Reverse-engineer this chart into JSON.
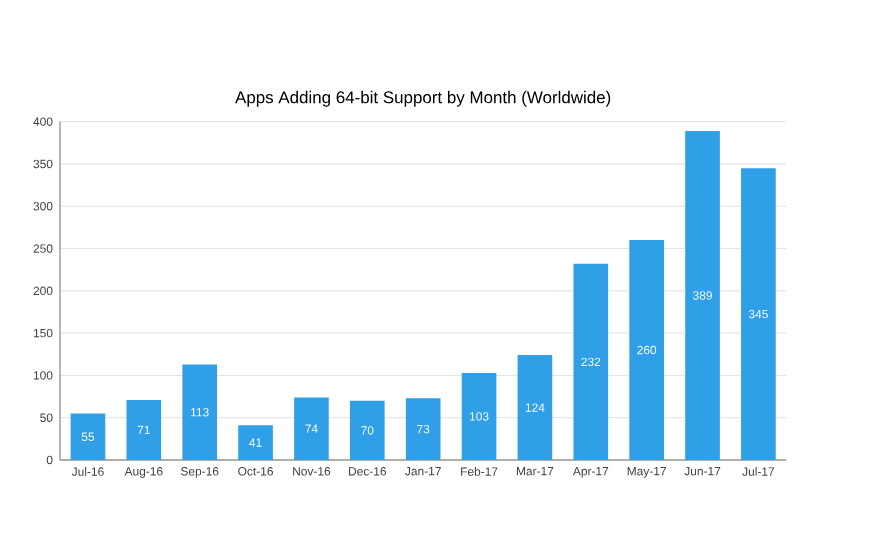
{
  "chart_data": {
    "type": "bar",
    "title": "Apps Adding 64-bit Support by Month (Worldwide)",
    "categories": [
      "Jul-16",
      "Aug-16",
      "Sep-16",
      "Oct-16",
      "Nov-16",
      "Dec-16",
      "Jan-17",
      "Feb-17",
      "Mar-17",
      "Apr-17",
      "May-17",
      "Jun-17",
      "Jul-17"
    ],
    "values": [
      55,
      71,
      113,
      41,
      74,
      70,
      73,
      103,
      124,
      232,
      260,
      389,
      345
    ],
    "color": "#2f9fe8",
    "ylim": [
      0,
      400
    ],
    "yticks": [
      0,
      50,
      100,
      150,
      200,
      250,
      300,
      350,
      400
    ],
    "grid": "y",
    "data_labels": true
  }
}
